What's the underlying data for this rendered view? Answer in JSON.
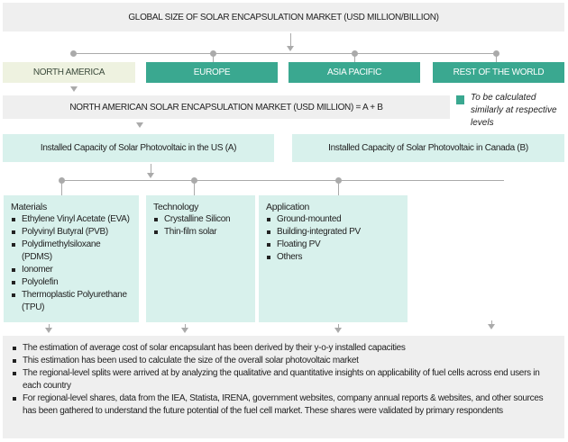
{
  "title": "GLOBAL  SIZE OF SOLAR ENCAPSULATION  MARKET (USD MILLION/BILLION)",
  "regions": [
    "NORTH AMERICA",
    "EUROPE",
    "ASIA PACIFIC",
    "REST OF THE WORLD"
  ],
  "na_market": "NORTH AMERICAN SOLAR ENCAPSULATION MARKET (USD MILLION) = A + B",
  "legend": {
    "text": "To be calculated similarly at respective levels",
    "color": "#3aa890"
  },
  "us_box": "Installed Capacity of  Solar Photovoltaic in the US (A)",
  "canada_box": "Installed Capacity of Solar Photovoltaic in Canada (B)",
  "segments": [
    {
      "title": "Materials",
      "items": [
        "Ethylene Vinyl Acetate (EVA)",
        "Polyvinyl Butyral (PVB)",
        "Polydimethylsiloxane (PDMS)",
        "Ionomer",
        "Polyolefin",
        "Thermoplastic Polyurethane (TPU)"
      ]
    },
    {
      "title": "Technology",
      "items": [
        "Crystalline Silicon",
        "Thin-film solar"
      ]
    },
    {
      "title": "Application",
      "items": [
        "Ground-mounted",
        "Building-integrated PV",
        "Floating PV",
        "Others"
      ]
    }
  ],
  "notes": [
    "The estimation of average cost of solar encapsulant has been derived by their y-o-y installed capacities",
    "This estimation has been used to calculate the size of the overall solar photovoltaic market",
    "The regional-level splits were arrived at by analyzing the qualitative and quantitative insights on applicability of fuel cells across end users in each country",
    "For regional-level shares, data from the IEA, Statista, IRENA, government websites, company annual reports & websites, and other sources has been gathered to understand the future potential of the fuel cell market. These shares were validated by primary respondents"
  ]
}
